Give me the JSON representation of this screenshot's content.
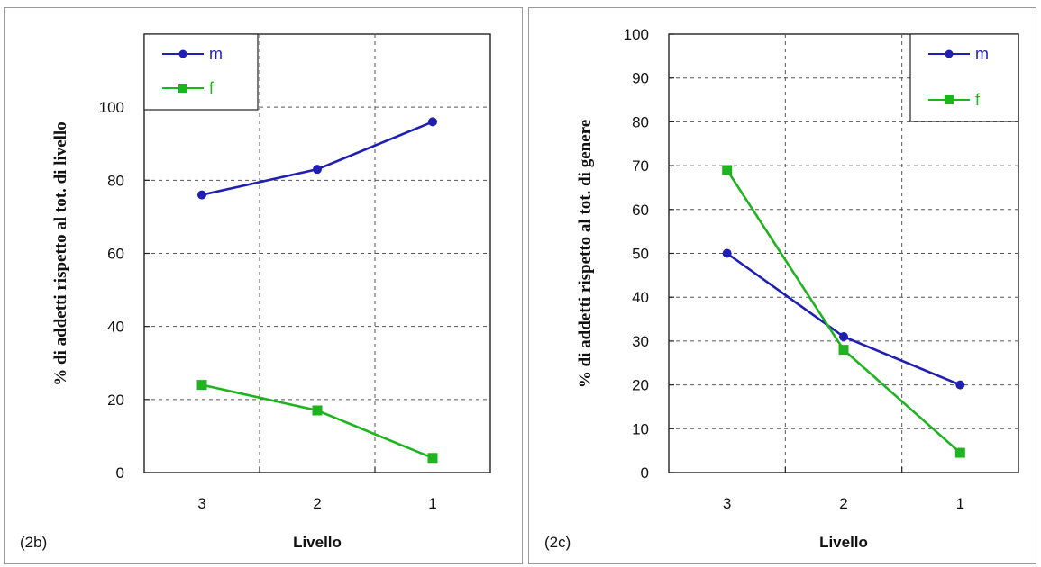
{
  "chart_data": [
    {
      "type": "line",
      "panel_tag": "(2b)",
      "title": "",
      "xlabel": "Livello",
      "ylabel": "% di addetti rispetto al tot. di livello",
      "categories": [
        "3",
        "2",
        "1"
      ],
      "ylim": [
        0,
        120
      ],
      "yticks": [
        0,
        20,
        40,
        60,
        80,
        100
      ],
      "grid": true,
      "legend_position": "top-left",
      "series": [
        {
          "name": "m",
          "marker": "circle",
          "color": "#1f1fb4",
          "values": [
            76,
            83,
            96
          ]
        },
        {
          "name": "f",
          "marker": "square",
          "color": "#1fb41f",
          "values": [
            24,
            17,
            4
          ]
        }
      ]
    },
    {
      "type": "line",
      "panel_tag": "(2c)",
      "title": "",
      "xlabel": "Livello",
      "ylabel": "% di addetti rispetto al tot. di genere",
      "categories": [
        "3",
        "2",
        "1"
      ],
      "ylim": [
        0,
        100
      ],
      "yticks": [
        0,
        10,
        20,
        30,
        40,
        50,
        60,
        70,
        80,
        90,
        100
      ],
      "grid": true,
      "legend_position": "top-right",
      "series": [
        {
          "name": "m",
          "marker": "circle",
          "color": "#1f1fb4",
          "values": [
            50,
            31,
            20
          ]
        },
        {
          "name": "f",
          "marker": "square",
          "color": "#1fb41f",
          "values": [
            69,
            28,
            4.5
          ]
        }
      ]
    }
  ]
}
